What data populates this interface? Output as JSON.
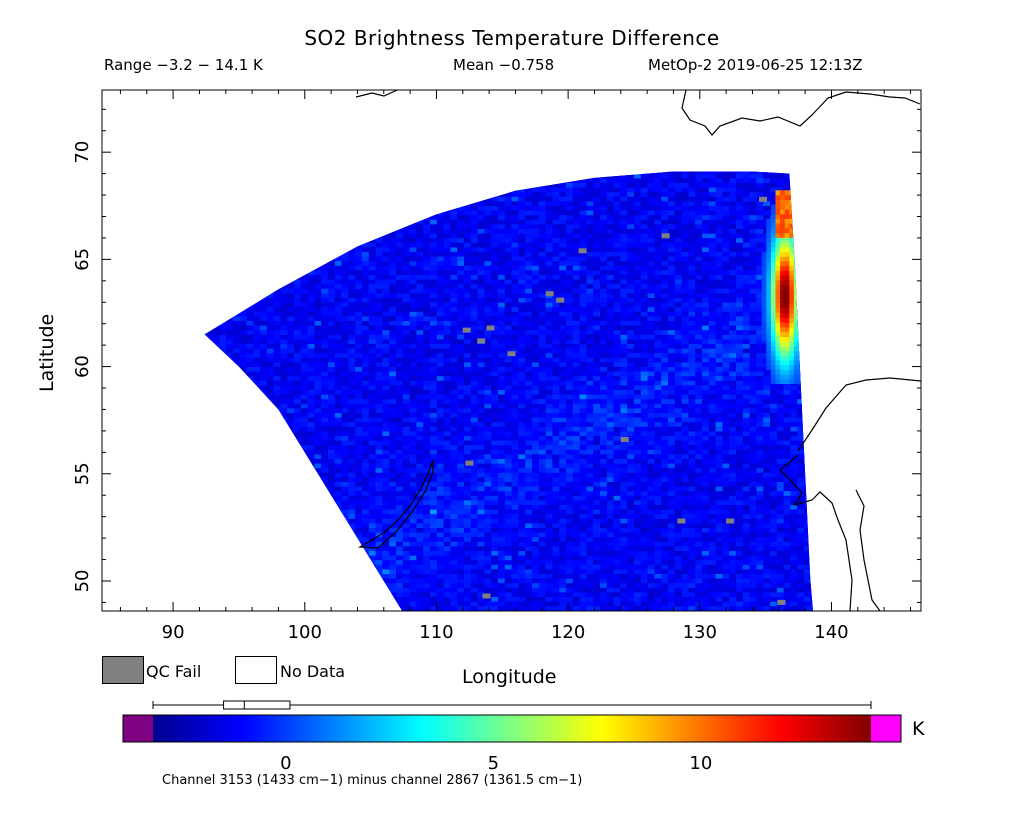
{
  "chart_data": {
    "type": "heatmap",
    "title": "SO2 Brightness Temperature Difference",
    "range_text": "Range −3.2 − 14.1 K",
    "mean_text": "Mean −0.758",
    "satellite_text": "MetOp-2 2019-06-25 12:13Z",
    "xlabel": "Longitude",
    "ylabel": "Latitude",
    "xlim": [
      84.6,
      146.8
    ],
    "ylim": [
      48.6,
      72.9
    ],
    "x_ticks": [
      90,
      100,
      110,
      120,
      130,
      140
    ],
    "y_ticks": [
      50,
      55,
      60,
      65,
      70
    ],
    "swath": {
      "outline": [
        [
          92.4,
          61.5
        ],
        [
          98,
          63.6
        ],
        [
          104,
          65.6
        ],
        [
          110,
          67.1
        ],
        [
          116,
          68.2
        ],
        [
          122,
          68.8
        ],
        [
          128,
          69.1
        ],
        [
          134,
          69.1
        ],
        [
          136.8,
          69.0
        ],
        [
          137.2,
          65
        ],
        [
          137.6,
          60
        ],
        [
          138.0,
          55
        ],
        [
          138.4,
          50
        ],
        [
          138.6,
          48.6
        ],
        [
          107.4,
          48.6
        ],
        [
          104,
          52
        ],
        [
          101,
          55
        ],
        [
          98,
          58
        ],
        [
          95,
          60
        ],
        [
          92.4,
          61.5
        ]
      ],
      "background_value": -1.2
    },
    "plume": {
      "lon_range": [
        134.0,
        137.2
      ],
      "lat_range": [
        59.2,
        68.0
      ],
      "peak_value": 14.1
    },
    "qc_fail_points": [
      [
        112.3,
        61.7
      ],
      [
        113.4,
        61.2
      ],
      [
        114.1,
        61.8
      ],
      [
        115.7,
        60.6
      ],
      [
        118.6,
        63.4
      ],
      [
        119.4,
        63.1
      ],
      [
        121.1,
        65.4
      ],
      [
        127.4,
        66.1
      ],
      [
        134.8,
        67.8
      ],
      [
        112.5,
        55.5
      ],
      [
        124.3,
        56.6
      ],
      [
        128.6,
        52.8
      ],
      [
        132.3,
        52.8
      ],
      [
        113.8,
        49.3
      ],
      [
        136.2,
        49.0
      ]
    ],
    "colorbar": {
      "min": -3.2,
      "max": 14.1,
      "ticks": [
        0,
        5,
        10
      ],
      "unit": "K",
      "boxplot": {
        "min": -3.2,
        "q1": -1.5,
        "median": -1.0,
        "q3": 0.1,
        "max": 14.1
      },
      "under_color": "#7f0080",
      "over_color": "#ff00ff",
      "footnote": "Channel 3153 (1433 cm−1) minus channel 2867 (1361.5 cm−1)"
    }
  },
  "legend": {
    "qc_fail_label": "QC Fail",
    "qc_fail_color": "#808080",
    "no_data_label": "No Data",
    "no_data_color": "#ffffff"
  }
}
